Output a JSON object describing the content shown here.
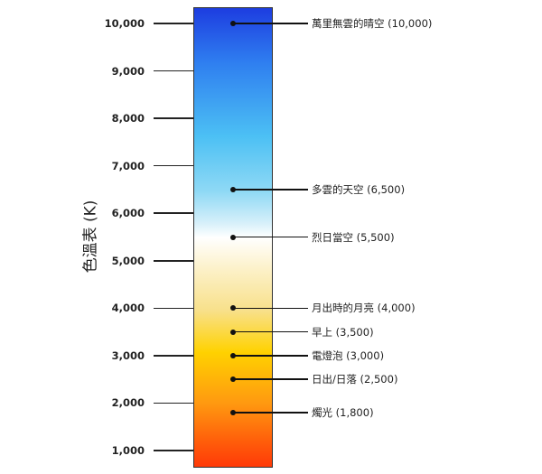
{
  "axis": {
    "label": "色溫表 (K)",
    "ticks": [
      {
        "value": 10000,
        "label": "10,000"
      },
      {
        "value": 9000,
        "label": "9,000"
      },
      {
        "value": 8000,
        "label": "8,000"
      },
      {
        "value": 7000,
        "label": "7,000"
      },
      {
        "value": 6000,
        "label": "6,000"
      },
      {
        "value": 5000,
        "label": "5,000"
      },
      {
        "value": 4000,
        "label": "4,000"
      },
      {
        "value": 3000,
        "label": "3,000"
      },
      {
        "value": 2000,
        "label": "2,000"
      },
      {
        "value": 1000,
        "label": "1,000"
      }
    ]
  },
  "gradient_colors": [
    "#1d3de0",
    "#4cc0f4",
    "#ffffff",
    "#ffd200",
    "#ff3a08"
  ],
  "markers": [
    {
      "value": 10000,
      "label": "萬里無雲的晴空 (10,000)"
    },
    {
      "value": 6500,
      "label": "多雲的天空 (6,500)"
    },
    {
      "value": 5500,
      "label": "烈日當空 (5,500)"
    },
    {
      "value": 4000,
      "label": "月出時的月亮 (4,000)"
    },
    {
      "value": 3500,
      "label": "早上 (3,500)"
    },
    {
      "value": 3000,
      "label": "電燈泡 (3,000)"
    },
    {
      "value": 2500,
      "label": "日出/日落 (2,500)"
    },
    {
      "value": 1800,
      "label": "燭光 (1,800)"
    }
  ]
}
